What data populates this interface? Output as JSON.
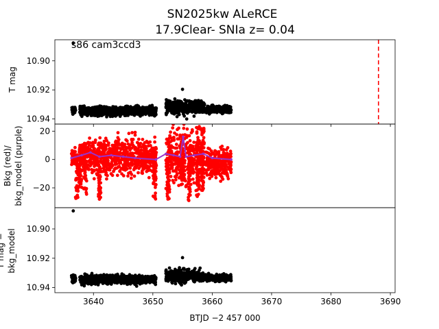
{
  "figure": {
    "title_line1": "SN2025kw  ALeRCE",
    "title_line2": "17.9Clear- SNIa z= 0.04",
    "xlabel": "BTJD −2 457 000"
  },
  "chart_data": [
    {
      "type": "scatter",
      "panel": "top",
      "ylabel": "T mag",
      "annotation": "s86 cam3ccd3",
      "xlim": [
        3633.5,
        3690.8
      ],
      "ylim": [
        10.9435,
        10.8855
      ],
      "y_inverted": true,
      "xticks": [
        3640,
        3650,
        3660,
        3670,
        3680,
        3690
      ],
      "yticks": [
        10.9,
        10.92,
        10.94
      ],
      "ytick_labels": [
        "10.90",
        "10.92",
        "10.94"
      ],
      "vline": {
        "x": 3688.0,
        "color": "#ff0000",
        "style": "dashed"
      },
      "series": [
        {
          "color": "#000000",
          "segments": [
            {
              "x_start": 3636.3,
              "x_end": 3637.0,
              "y_center": 10.934,
              "y_spread": 0.0012
            },
            {
              "x_start": 3637.7,
              "x_end": 3650.6,
              "y_center": 10.9345,
              "y_spread": 0.0015
            },
            {
              "x_start": 3652.2,
              "x_end": 3658.7,
              "y_center": 10.932,
              "y_spread": 0.0022
            },
            {
              "x_start": 3658.8,
              "x_end": 3663.2,
              "y_center": 10.9335,
              "y_spread": 0.0012
            }
          ],
          "outliers": [
            {
              "x": 3636.6,
              "y": 10.8877
            },
            {
              "x": 3655.0,
              "y": 10.9196
            },
            {
              "x": 3655.3,
              "y": 10.938
            },
            {
              "x": 3655.7,
              "y": 10.94
            },
            {
              "x": 3654.2,
              "y": 10.936
            }
          ]
        }
      ]
    },
    {
      "type": "scatter",
      "panel": "middle",
      "ylabel_line1": "Bkg (red)/",
      "ylabel_line2": "bkg_model (purple)",
      "xlim": [
        3633.5,
        3690.8
      ],
      "ylim": [
        -34,
        25
      ],
      "yticks": [
        20,
        0,
        -20
      ],
      "ytick_labels": [
        "20",
        "0",
        "−20"
      ],
      "series": [
        {
          "color": "#ff0000",
          "segments": [
            {
              "x_start": 3636.3,
              "x_end": 3637.0,
              "y_center": 1,
              "y_spread": 3
            },
            {
              "x_start": 3637.7,
              "x_end": 3650.6,
              "y_center": 2,
              "y_spread": 6
            },
            {
              "x_start": 3652.2,
              "x_end": 3658.7,
              "y_center": 0,
              "y_spread": 10
            },
            {
              "x_start": 3658.8,
              "x_end": 3663.2,
              "y_center": -2,
              "y_spread": 5
            }
          ],
          "spikes": [
            {
              "x": 3637.2,
              "y_low": -28,
              "y_high": 5
            },
            {
              "x": 3637.8,
              "y_low": -22,
              "y_high": 10
            },
            {
              "x": 3638.6,
              "y_low": -26,
              "y_high": 12
            },
            {
              "x": 3641.0,
              "y_low": -28,
              "y_high": 6
            },
            {
              "x": 3650.3,
              "y_low": -28,
              "y_high": 0
            },
            {
              "x": 3652.6,
              "y_low": -28,
              "y_high": 2
            },
            {
              "x": 3654.8,
              "y_low": -18,
              "y_high": 20
            },
            {
              "x": 3656.2,
              "y_low": -30,
              "y_high": 10
            },
            {
              "x": 3657.6,
              "y_low": -28,
              "y_high": 23
            },
            {
              "x": 3658.4,
              "y_low": -28,
              "y_high": 23
            }
          ],
          "outliers": [
            {
              "x": 3641.0,
              "y": -28
            },
            {
              "x": 3655.2,
              "y": 22
            }
          ]
        },
        {
          "color": "#9933cc",
          "line": [
            {
              "x": 3636.3,
              "y": 1
            },
            {
              "x": 3638.0,
              "y": 3
            },
            {
              "x": 3639.5,
              "y": 5
            },
            {
              "x": 3641.0,
              "y": 2
            },
            {
              "x": 3643.0,
              "y": 3
            },
            {
              "x": 3645.0,
              "y": 2
            },
            {
              "x": 3647.0,
              "y": 1
            },
            {
              "x": 3650.5,
              "y": 0
            },
            {
              "x": 3652.2,
              "y": 4
            },
            {
              "x": 3653.5,
              "y": 3
            },
            {
              "x": 3654.6,
              "y": 2
            },
            {
              "x": 3655.1,
              "y": 16
            },
            {
              "x": 3655.6,
              "y": 2
            },
            {
              "x": 3657.0,
              "y": 3
            },
            {
              "x": 3658.5,
              "y": 4
            },
            {
              "x": 3660.0,
              "y": 1
            },
            {
              "x": 3663.2,
              "y": 0
            }
          ]
        }
      ]
    },
    {
      "type": "scatter",
      "panel": "bottom",
      "ylabel_line1": "T mag −",
      "ylabel_line2": "bkg_model",
      "xlim": [
        3633.5,
        3690.8
      ],
      "ylim": [
        10.9435,
        10.8855
      ],
      "y_inverted": true,
      "xticks": [
        3640,
        3650,
        3660,
        3670,
        3680,
        3690
      ],
      "xtick_labels": [
        "3640",
        "3650",
        "3660",
        "3670",
        "3680",
        "3690"
      ],
      "yticks": [
        10.9,
        10.92,
        10.94
      ],
      "ytick_labels": [
        "10.90",
        "10.92",
        "10.94"
      ],
      "series": [
        {
          "color": "#000000",
          "segments": [
            {
              "x_start": 3636.3,
              "x_end": 3637.0,
              "y_center": 10.934,
              "y_spread": 0.0012
            },
            {
              "x_start": 3637.7,
              "x_end": 3650.6,
              "y_center": 10.9345,
              "y_spread": 0.0015
            },
            {
              "x_start": 3652.2,
              "x_end": 3658.7,
              "y_center": 10.932,
              "y_spread": 0.0022
            },
            {
              "x_start": 3658.8,
              "x_end": 3663.2,
              "y_center": 10.9335,
              "y_spread": 0.0012
            }
          ],
          "outliers": [
            {
              "x": 3636.6,
              "y": 10.8877
            },
            {
              "x": 3655.0,
              "y": 10.9196
            },
            {
              "x": 3654.6,
              "y": 10.936
            }
          ]
        }
      ]
    }
  ]
}
